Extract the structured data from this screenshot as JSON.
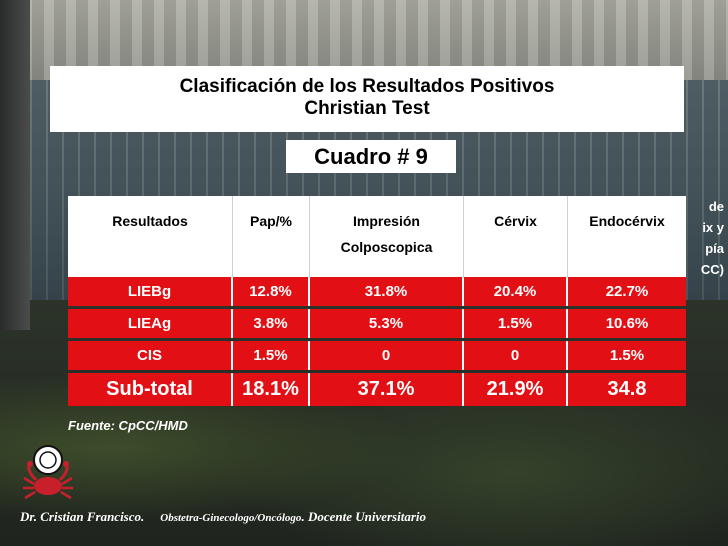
{
  "title": {
    "line1": "Clasificación de los Resultados  Positivos",
    "line2": "Christian  Test"
  },
  "cuadro": "Cuadro  # 9",
  "side_fragments": [
    "de",
    "ix y",
    "pía",
    "CC)"
  ],
  "table": {
    "headers": [
      "Resultados",
      "Pap/%",
      "Impresión",
      "Cérvix",
      "Endocérvix"
    ],
    "header_sub": "Colposcopica",
    "rows": [
      [
        "LIEBg",
        "12.8%",
        "31.8%",
        "20.4%",
        "22.7%"
      ],
      [
        "LIEAg",
        "3.8%",
        "5.3%",
        "1.5%",
        "10.6%"
      ],
      [
        "CIS",
        "1.5%",
        "0",
        "0",
        "1.5%"
      ],
      [
        "Sub-total",
        "18.1%",
        "37.1%",
        "21.9%",
        "34.8"
      ]
    ]
  },
  "fuente": "Fuente: CpCC/HMD",
  "footer": {
    "name": "Dr. Cristian Francisco.",
    "specialty": "Obstetra-Ginecologo/Oncólogo",
    "role": ". Docente Universitario"
  },
  "colors": {
    "table_red": "#e20f14",
    "header_white": "#ffffff"
  },
  "icons": [
    "crab-logo-icon"
  ]
}
